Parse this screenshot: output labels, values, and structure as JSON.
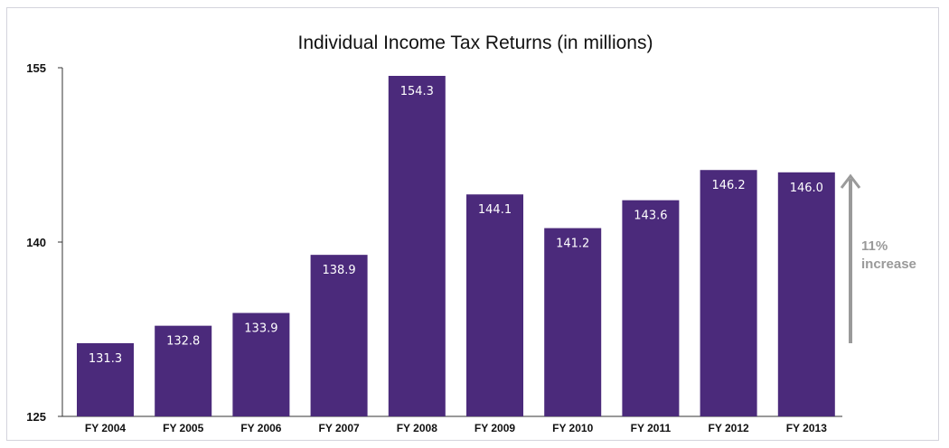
{
  "chart_data": {
    "type": "bar",
    "title": "Individual Income Tax Returns (in millions)",
    "categories": [
      "FY 2004",
      "FY 2005",
      "FY 2006",
      "FY 2007",
      "FY 2008",
      "FY 2009",
      "FY 2010",
      "FY 2011",
      "FY 2012",
      "FY 2013"
    ],
    "values": [
      131.3,
      132.8,
      133.9,
      138.9,
      154.3,
      144.1,
      141.2,
      143.6,
      146.2,
      146.0
    ],
    "value_labels": [
      "131.3",
      "132.8",
      "133.9",
      "138.9",
      "154.3",
      "144.1",
      "141.2",
      "143.6",
      "146.2",
      "146.0"
    ],
    "ylim": [
      125,
      155
    ],
    "yticks": [
      125,
      140,
      155
    ],
    "ytick_labels": [
      "125",
      "140",
      "155"
    ],
    "xlabel": "",
    "ylabel": "",
    "grid": false,
    "legend": "none",
    "bar_color": "#4b2a7b",
    "annotation": {
      "lines": [
        "11%",
        "increase"
      ],
      "color": "#9a9a9a",
      "arrow": "up"
    }
  }
}
